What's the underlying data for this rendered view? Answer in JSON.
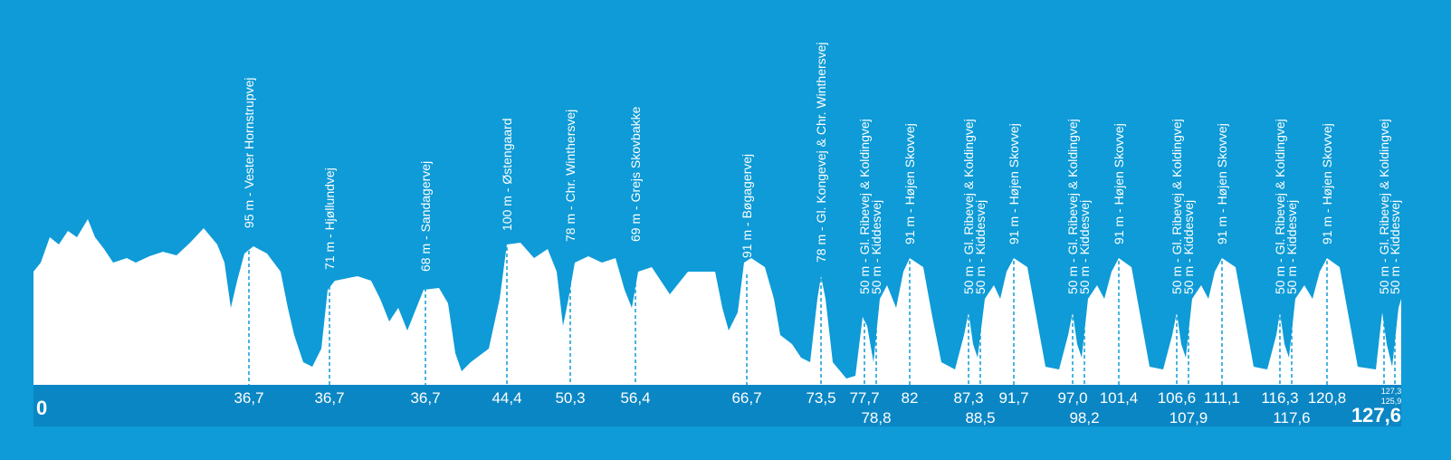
{
  "start": "0",
  "finish": "127,6",
  "climbs": [
    {
      "label": "95 m - Vester Hornstrupvej",
      "km": "36,7"
    },
    {
      "label": "71 m - Hjøllundvej",
      "km": "36,7"
    },
    {
      "label": "68 m - Sandagervej",
      "km": "36,7"
    },
    {
      "label": "100 m - Østengaard",
      "km": "44,4"
    },
    {
      "label": "78 m - Chr. Winthersvej",
      "km": "50,3"
    },
    {
      "label": "69 m - Grejs Skovbakke",
      "km": "56,4"
    },
    {
      "label": "91 m - Bøgagervej",
      "km": "66,7"
    },
    {
      "label": "78 m - Gl. Kongevej & Chr. Winthersvej",
      "km": "73,5"
    },
    {
      "label": "50 m - Gl. Ribevej & Koldingvej",
      "km": "77,7"
    },
    {
      "label": "50 m - Kiddesvej",
      "km": "78,8"
    },
    {
      "label": "91 m - Højen Skovvej",
      "km": "82"
    },
    {
      "label": "50 m - Gl. Ribevej & Koldingvej",
      "km": "87,3"
    },
    {
      "label": "50 m - Kiddesvej",
      "km": "88,5"
    },
    {
      "label": "91 m - Højen Skovvej",
      "km": "91,7"
    },
    {
      "label": "50 m - Gl. Ribevej & Koldingvej",
      "km": "97,0"
    },
    {
      "label": "50 m - Kiddesvej",
      "km": "98,2"
    },
    {
      "label": "91 m - Højen Skovvej",
      "km": "101,4"
    },
    {
      "label": "50 m - Gl. Ribevej & Koldingvej",
      "km": "106,6"
    },
    {
      "label": "50 m - Kiddesvej",
      "km": "107,9"
    },
    {
      "label": "91 m - Højen Skovvej",
      "km": "111,1"
    },
    {
      "label": "50 m - Gl. Ribevej & Koldingvej",
      "km": "116,3"
    },
    {
      "label": "50 m - Kiddesvej",
      "km": "117,6"
    },
    {
      "label": "91 m - Højen Skovvej",
      "km": "120,8"
    },
    {
      "label": "50 m - Gl. Ribevej & Koldingvej",
      "km": "125,9"
    },
    {
      "label": "50 m - Kiddesvej",
      "km": "127,3"
    }
  ]
}
